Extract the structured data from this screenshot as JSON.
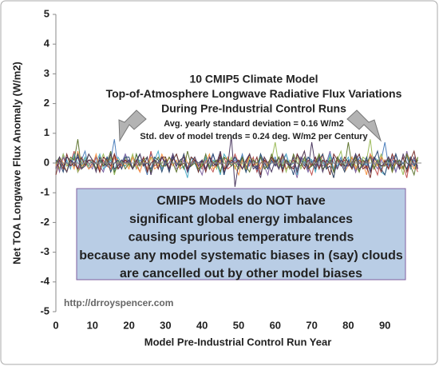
{
  "chart_data": {
    "type": "line",
    "title": [
      "10 CMIP5 Climate Model",
      "Top-of-Atmosphere Longwave Radiative Flux Variations",
      "During Pre-Industrial Control Runs"
    ],
    "subtitle": [
      "Avg. yearly standard deviation = 0.16 W/m2",
      "Std. dev of model trends = 0.24 deg. W/m2 per Century"
    ],
    "annotation": [
      "CMIP5 Models do NOT have",
      "significant global energy imbalances",
      "causing spurious temperature trends",
      "because any model systematic biases in (say) clouds",
      "are cancelled out by other model biases"
    ],
    "watermark": "http://drroyspencer.com",
    "xlabel": "Model Pre-Industrial Control Run Year",
    "ylabel": "Net TOA Longwave Flux Anomaly (W/m2)",
    "xlim": [
      0,
      100
    ],
    "xticks": [
      0,
      10,
      20,
      30,
      40,
      50,
      60,
      70,
      80,
      90
    ],
    "ylim": [
      -5,
      5
    ],
    "yticks": [
      -5,
      -4,
      -3,
      -2,
      -1,
      0,
      1,
      2,
      3,
      4,
      5
    ],
    "x": [
      0,
      1,
      2,
      3,
      4,
      5,
      6,
      7,
      8,
      9,
      10,
      11,
      12,
      13,
      14,
      15,
      16,
      17,
      18,
      19,
      20,
      21,
      22,
      23,
      24,
      25,
      26,
      27,
      28,
      29,
      30,
      31,
      32,
      33,
      34,
      35,
      36,
      37,
      38,
      39,
      40,
      41,
      42,
      43,
      44,
      45,
      46,
      47,
      48,
      49,
      50,
      51,
      52,
      53,
      54,
      55,
      56,
      57,
      58,
      59,
      60,
      61,
      62,
      63,
      64,
      65,
      66,
      67,
      68,
      69,
      70,
      71,
      72,
      73,
      74,
      75,
      76,
      77,
      78,
      79,
      80,
      81,
      82,
      83,
      84,
      85,
      86,
      87,
      88,
      89,
      90,
      91,
      92,
      93,
      94,
      95,
      96,
      97,
      98,
      99
    ],
    "series": [
      {
        "color": "#4F81BD",
        "values": [
          0.1,
          -0.2,
          0.3,
          0,
          -0.1,
          0.2,
          -0.3,
          0.1,
          0.4,
          -0.2,
          0,
          0.2,
          -0.1,
          -0.3,
          0.2,
          0.1,
          0.8,
          -0.2,
          0,
          0.3,
          -0.1,
          0.2,
          -0.2,
          0.1,
          0,
          -0.4,
          0.3,
          0.1,
          -0.1,
          0.2,
          0,
          -0.2,
          0.3,
          -0.1,
          0.1,
          0.2,
          -0.3,
          0,
          0.2,
          -0.1,
          0.1,
          -0.2,
          0,
          0.3,
          -0.1,
          0.2,
          -0.4,
          0.1,
          0,
          0.2,
          -0.1,
          0.3,
          -0.2,
          0,
          0.1,
          -0.3,
          0.2,
          0.1,
          -0.1,
          0,
          0.2,
          -0.2,
          0.1,
          0.3,
          -0.1,
          0,
          -0.2,
          0.2,
          0.1,
          -0.3,
          0,
          0.2,
          -0.1,
          0.1,
          -0.2,
          0.3,
          0,
          -0.1,
          0.2,
          -0.2,
          0.1,
          0,
          -0.3,
          0.2,
          0.1,
          -0.1,
          0.3,
          -0.2,
          0,
          0.1,
          0.7,
          -0.1,
          0.2,
          -0.3,
          0.1,
          0,
          0.2,
          -0.2,
          0.1,
          -0.1
        ]
      },
      {
        "color": "#C0504D",
        "values": [
          0.1,
          -0.2,
          0.2,
          -0.1,
          0,
          0.4,
          -0.3,
          -0.1,
          0.1,
          -0.2,
          0,
          0.2,
          -0.3,
          0.1,
          -0.1,
          -0.2,
          0.3,
          0,
          -0.2,
          0.1,
          -0.1,
          0.2,
          0,
          -0.3,
          0.1,
          -0.2,
          0.4,
          -0.1,
          0,
          -0.2,
          0.1,
          -0.3,
          0.2,
          0,
          -0.1,
          0.3,
          -0.2,
          -0.1,
          0.1,
          0,
          -0.2,
          0.2,
          -0.1,
          -0.3,
          0.1,
          0,
          0.2,
          -0.2,
          -0.1,
          0.3,
          0,
          -0.2,
          0.1,
          -0.1,
          0.2,
          -0.3,
          0,
          0.1,
          -0.2,
          0.2,
          -0.1,
          0,
          0.3,
          -0.2,
          -0.1,
          0.1,
          -0.3,
          0.2,
          0,
          -0.1,
          -0.4,
          0.1,
          -0.2,
          0.3,
          -0.1,
          0,
          -0.2,
          0.2,
          -0.1,
          0.1,
          -0.1,
          0.2,
          -0.3,
          0,
          0.1,
          -0.2,
          0.3,
          -0.1,
          -0.4,
          0.2,
          0,
          -0.2,
          0.1,
          0.3,
          -0.2,
          -0.1,
          -0.5,
          0.2,
          0,
          -0.3
        ]
      },
      {
        "color": "#9BBB59",
        "values": [
          0,
          -0.2,
          0.3,
          -0.1,
          0.1,
          0.2,
          -0.3,
          0,
          0.2,
          -0.1,
          0.1,
          -0.2,
          0,
          0.3,
          -0.1,
          0.2,
          -0.4,
          0.1,
          0,
          0.2,
          -0.1,
          0.3,
          -0.2,
          0,
          0.1,
          -0.3,
          0.2,
          0.1,
          -0.1,
          0,
          0.2,
          -0.2,
          0.1,
          0.3,
          -0.1,
          0,
          -0.2,
          0.2,
          0.1,
          -0.3,
          0,
          0.2,
          -0.1,
          0.1,
          -0.2,
          0.3,
          0,
          -0.1,
          0.2,
          -0.2,
          0.1,
          0,
          -0.3,
          0.2,
          0.1,
          -0.1,
          0.3,
          -0.2,
          0,
          0.1,
          0.7,
          -0.1,
          0.2,
          -0.3,
          0.1,
          0,
          0.2,
          -0.2,
          0.1,
          -0.1,
          0.1,
          -0.2,
          0.3,
          0,
          -0.1,
          0.2,
          -0.3,
          0.1,
          0.4,
          -0.2,
          0,
          0.2,
          -0.1,
          -0.3,
          0.2,
          0.1,
          0.8,
          -0.2,
          0,
          0.3,
          -0.1,
          0.2,
          -0.2,
          0.1,
          0,
          -0.4,
          0.3,
          0.1,
          -0.1,
          0.2
        ]
      },
      {
        "color": "#8064A2",
        "values": [
          0.1,
          -0.3,
          0.2,
          0,
          -0.1,
          0.3,
          -0.2,
          -0.1,
          0.1,
          0,
          -0.2,
          0.2,
          -0.1,
          -0.3,
          0.1,
          0,
          0.2,
          -0.2,
          -0.1,
          0.3,
          0,
          -0.2,
          0.1,
          -0.1,
          0.2,
          -0.3,
          0,
          0.1,
          -0.2,
          0.2,
          -0.1,
          0,
          0.3,
          -0.2,
          -0.1,
          0.1,
          -0.3,
          0.2,
          0,
          -0.1,
          -0.4,
          0.1,
          -0.2,
          0.3,
          -0.1,
          0,
          -0.2,
          0.2,
          -0.1,
          0.1,
          -0.1,
          0.2,
          -0.3,
          0,
          0.1,
          -0.2,
          0.3,
          -0.1,
          -0.4,
          0.2,
          0,
          -0.2,
          0.1,
          0.3,
          -0.2,
          -0.1,
          -0.5,
          0.2,
          0,
          -0.3,
          0.1,
          -0.2,
          0.2,
          -0.1,
          0,
          0.4,
          -0.3,
          -0.1,
          0.1,
          -0.2,
          0,
          0.2,
          -0.3,
          0.1,
          -0.1,
          -0.2,
          0.3,
          0,
          -0.2,
          0.1,
          -0.1,
          0.2,
          0,
          -0.3,
          0.1,
          -0.2,
          0.4,
          -0.1,
          0,
          -0.2
        ]
      },
      {
        "color": "#4BACC6",
        "values": [
          0,
          0.2,
          -0.1,
          0.1,
          -0.2,
          0.3,
          0,
          -0.1,
          0.2,
          -0.2,
          -0.1,
          0,
          0.3,
          -0.2,
          -0.1,
          0.1,
          -0.3,
          0.2,
          0,
          -0.1,
          0.1,
          -0.2,
          0.3,
          0,
          -0.1,
          0.2,
          -0.3,
          0.1,
          0.4,
          -0.2,
          0,
          -0.2,
          0.1,
          0.3,
          -0.2,
          -0.1,
          -0.5,
          0.2,
          0,
          -0.3,
          -0.1,
          0.2,
          -0.2,
          0.1,
          0,
          -0.4,
          0.3,
          0.1,
          -0.1,
          0.2,
          0,
          0.2,
          -0.3,
          0.1,
          -0.1,
          -0.2,
          0.3,
          0,
          -0.2,
          0.1,
          0.1,
          -0.2,
          0,
          0.3,
          -0.1,
          0.2,
          -0.4,
          0.1,
          0,
          0.2,
          0.1,
          -0.3,
          0.2,
          0,
          -0.1,
          0.3,
          -0.2,
          -0.1,
          0.1,
          0,
          0.2,
          -0.2,
          0.1,
          0.3,
          -0.1,
          0,
          -0.2,
          0.2,
          0.1,
          -0.3,
          -0.4,
          0.1,
          -0.2,
          0.3,
          -0.1,
          0,
          -0.2,
          0.2,
          -0.1,
          0.1
        ]
      },
      {
        "color": "#F79646",
        "values": [
          -0.1,
          0.2,
          0,
          -0.3,
          0.1,
          -0.2,
          0.4,
          -0.1,
          0,
          -0.2,
          -0.1,
          0.3,
          -0.2,
          0,
          0.1,
          -0.3,
          0.2,
          0.1,
          -0.1,
          0,
          -0.2,
          0.2,
          -0.1,
          -0.3,
          0.1,
          0,
          0.2,
          -0.2,
          -0.1,
          0.3,
          0,
          0.2,
          -0.1,
          0.1,
          -0.2,
          0.3,
          0,
          -0.1,
          0.2,
          -0.2,
          -0.1,
          0,
          0.3,
          -0.2,
          -0.1,
          0.1,
          -0.3,
          0.2,
          0,
          -0.1,
          -0.4,
          0.1,
          -0.2,
          0.3,
          -0.1,
          0,
          -0.2,
          0.2,
          -0.1,
          0.1,
          0.1,
          -0.2,
          0.3,
          0,
          -0.1,
          0.2,
          -0.3,
          0.1,
          0.4,
          -0.2,
          0,
          -0.2,
          0.1,
          0.3,
          -0.2,
          -0.1,
          -0.5,
          0.2,
          0,
          -0.3,
          -0.1,
          0.2,
          -0.2,
          0.1,
          0,
          -0.4,
          0.3,
          0.1,
          -0.1,
          0.2,
          0,
          0.2,
          -0.3,
          0.1,
          -0.1,
          -0.2,
          0.3,
          0,
          -0.2,
          0.1
        ]
      },
      {
        "color": "#2C4D75",
        "values": [
          0.1,
          0,
          -0.3,
          0.2,
          0.1,
          -0.1,
          0.3,
          -0.2,
          0,
          0.1,
          0,
          -0.2,
          0.1,
          -0.1,
          0.2,
          -0.3,
          0,
          0.1,
          -0.2,
          0.2,
          0.2,
          -0.2,
          0.1,
          0.3,
          -0.1,
          0,
          -0.2,
          0.2,
          0.1,
          -0.3,
          0.1,
          -0.3,
          0.2,
          0,
          -0.1,
          0.3,
          -0.2,
          -0.1,
          0.1,
          0,
          0.1,
          -0.2,
          0,
          0.3,
          -0.1,
          0.2,
          -0.4,
          0.1,
          0,
          0.2,
          0,
          0.2,
          -0.3,
          0.1,
          -0.1,
          -0.2,
          0.3,
          0,
          -0.2,
          0.1,
          -0.1,
          0.2,
          -0.2,
          0.1,
          0,
          -0.4,
          0.3,
          0.1,
          -0.1,
          0.2,
          0,
          -0.2,
          0.1,
          0.3,
          -0.2,
          -0.1,
          -0.5,
          0.2,
          0,
          -0.3,
          0.1,
          -0.2,
          0.3,
          0,
          -0.1,
          0.2,
          -0.3,
          0.1,
          0.4,
          -0.2,
          -0.4,
          0.1,
          -0.2,
          0.3,
          -0.1,
          0,
          -0.2,
          0.2,
          -0.1,
          0.1
        ]
      },
      {
        "color": "#772C2A",
        "values": [
          -0.4,
          0.1,
          -0.2,
          0.3,
          -0.1,
          0,
          -0.2,
          0.2,
          -0.1,
          0.1,
          0.1,
          0,
          -0.3,
          0.2,
          0.1,
          -0.1,
          0.3,
          -0.2,
          0,
          0.1,
          0,
          -0.2,
          0.1,
          -0.1,
          0.2,
          -0.3,
          0,
          0.1,
          -0.2,
          0.2,
          0.2,
          -0.2,
          0.1,
          0.3,
          -0.1,
          0,
          -0.2,
          0.2,
          0.1,
          -0.3,
          0.1,
          -0.3,
          0.2,
          0,
          -0.1,
          0.3,
          -0.2,
          -0.1,
          0.1,
          0,
          0.1,
          -0.2,
          0,
          0.3,
          -0.1,
          0.2,
          -0.4,
          0.1,
          0,
          0.2,
          0,
          0.2,
          -0.3,
          0.1,
          -0.1,
          -0.2,
          0.3,
          0,
          -0.2,
          0.1,
          -0.1,
          0.2,
          -0.2,
          0.1,
          0,
          -0.4,
          0.3,
          0.1,
          -0.1,
          0.2,
          0,
          -0.2,
          0.1,
          0.3,
          -0.2,
          -0.1,
          -0.5,
          0.2,
          0,
          -0.3,
          0.1,
          -0.2,
          0.3,
          0,
          -0.1,
          0.2,
          -0.3,
          0.1,
          0.4,
          -0.2
        ]
      },
      {
        "color": "#5F7530",
        "values": [
          0,
          0.2,
          -0.1,
          -0.3,
          0.2,
          0.1,
          0.8,
          -0.2,
          0,
          0.3,
          0.1,
          -0.2,
          0.2,
          -0.1,
          0,
          0.4,
          -0.3,
          -0.1,
          0.1,
          -0.2,
          0,
          -0.2,
          0.3,
          -0.1,
          0.1,
          0.2,
          -0.3,
          0,
          0.2,
          -0.1,
          -0.1,
          0.2,
          0,
          -0.3,
          0.1,
          -0.2,
          0.4,
          -0.1,
          0,
          -0.2,
          -0.1,
          0.3,
          -0.2,
          0,
          0.1,
          -0.3,
          0.2,
          0.1,
          -0.1,
          0,
          -0.2,
          0.2,
          -0.1,
          -0.3,
          0.1,
          0,
          0.2,
          -0.2,
          -0.1,
          0.3,
          0,
          0.2,
          -0.1,
          0.1,
          -0.2,
          0.3,
          0,
          -0.1,
          0.2,
          -0.2,
          -0.1,
          0,
          0.3,
          -0.2,
          -0.1,
          0.1,
          -0.3,
          0.2,
          0,
          -0.1,
          0.7,
          -0.1,
          0.2,
          -0.3,
          0.1,
          0,
          0.2,
          -0.2,
          0.1,
          -0.1,
          -0.1,
          0.2,
          -0.3,
          0,
          0.1,
          -0.2,
          0.3,
          -0.1,
          -0.4,
          0.2
        ]
      },
      {
        "color": "#4D3B62",
        "values": [
          -0.2,
          0.2,
          -0.1,
          -0.3,
          0.1,
          0,
          0.2,
          -0.2,
          -0.1,
          0.3,
          0.1,
          -0.3,
          0.2,
          0,
          -0.1,
          0.3,
          -0.2,
          -0.1,
          0.1,
          0,
          0.1,
          -0.2,
          0,
          0.3,
          -0.1,
          0.2,
          -0.4,
          0.1,
          0,
          0.2,
          0,
          -0.2,
          0.3,
          -0.1,
          0.1,
          0.2,
          -0.3,
          0,
          0.2,
          -0.1,
          0.1,
          -0.2,
          0.2,
          -0.1,
          0,
          0.4,
          -0.3,
          -0.1,
          0.9,
          -0.8,
          0,
          -0.2,
          0.1,
          0.3,
          -0.2,
          -0.1,
          -0.5,
          0.2,
          0,
          -0.3,
          0.1,
          -0.2,
          0.3,
          0,
          -0.1,
          0.2,
          -0.3,
          0.1,
          0.4,
          -0.2,
          0.7,
          -0.1,
          0.2,
          -0.3,
          0.1,
          0,
          0.2,
          -0.2,
          0.1,
          -0.1,
          -0.1,
          0,
          0.3,
          -0.2,
          -0.1,
          0.1,
          -0.3,
          0.2,
          0,
          -0.1,
          0,
          0.2,
          -0.1,
          0.1,
          -0.2,
          0.3,
          0,
          -0.1,
          0.2,
          -0.2
        ]
      }
    ]
  }
}
